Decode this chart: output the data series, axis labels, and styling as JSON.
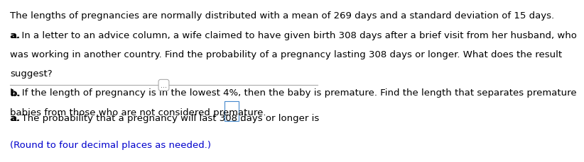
{
  "line1": "The lengths of pregnancies are normally distributed with a mean of 269 days and a standard deviation of 15 days.",
  "line2a_bold": "a.",
  "line2a_rest": " In a letter to an advice column, a wife claimed to have given birth 308 days after a brief visit from her husband, who",
  "line3": "was working in another country. Find the probability of a pregnancy lasting 308 days or longer. What does the result",
  "line4": "suggest?",
  "line5b_bold": "b.",
  "line5b_rest": " If the length of pregnancy is in the lowest 4%, then the baby is premature. Find the length that separates premature",
  "line6": "babies from those who are not considered premature.",
  "divider_label": "...",
  "answer_line_bold": "a.",
  "answer_line_rest": " The probability that a pregnancy will last 308 days or longer is",
  "answer_note": "(Round to four decimal places as needed.)",
  "text_color": "#000000",
  "note_color": "#0000CC",
  "bg_color": "#ffffff",
  "font_size": 9.5,
  "bold_color": "#000000"
}
